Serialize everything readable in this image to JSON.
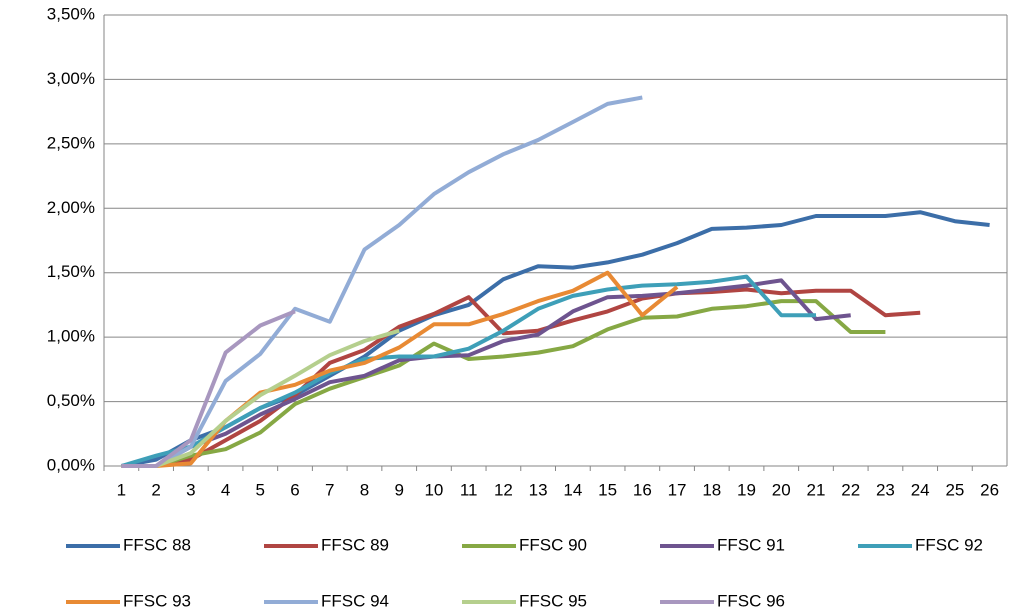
{
  "chart_data": {
    "type": "line",
    "categories": [
      1,
      2,
      3,
      4,
      5,
      6,
      7,
      8,
      9,
      10,
      11,
      12,
      13,
      14,
      15,
      16,
      17,
      18,
      19,
      20,
      21,
      22,
      23,
      24,
      25,
      26
    ],
    "ylim": [
      0,
      3.5
    ],
    "yticks": [
      {
        "value": 0,
        "label": "0,00%"
      },
      {
        "value": 0.5,
        "label": "0,50%"
      },
      {
        "value": 1,
        "label": "1,00%"
      },
      {
        "value": 1.5,
        "label": "1,50%"
      },
      {
        "value": 2,
        "label": "2,00%"
      },
      {
        "value": 2.5,
        "label": "2,50%"
      },
      {
        "value": 3,
        "label": "3,00%"
      },
      {
        "value": 3.5,
        "label": "3,50%"
      }
    ],
    "grid": true,
    "legend": "bottom",
    "series": [
      {
        "name": "FFSC 88",
        "color": "#3c6ea8",
        "values": [
          0,
          0.05,
          0.2,
          0.3,
          0.45,
          0.55,
          0.7,
          0.85,
          1.05,
          1.17,
          1.25,
          1.45,
          1.55,
          1.54,
          1.58,
          1.64,
          1.73,
          1.84,
          1.85,
          1.87,
          1.94,
          1.94,
          1.94,
          1.97,
          1.9,
          1.87
        ]
      },
      {
        "name": "FFSC 89",
        "color": "#b04542",
        "values": [
          0,
          0,
          0.05,
          0.2,
          0.35,
          0.55,
          0.8,
          0.9,
          1.08,
          1.18,
          1.31,
          1.03,
          1.05,
          1.13,
          1.2,
          1.3,
          1.34,
          1.35,
          1.37,
          1.34,
          1.36,
          1.36,
          1.17,
          1.19,
          null,
          null
        ]
      },
      {
        "name": "FFSC 90",
        "color": "#86a844",
        "values": [
          0,
          0,
          0.08,
          0.13,
          0.26,
          0.48,
          0.6,
          0.69,
          0.78,
          0.95,
          0.83,
          0.85,
          0.88,
          0.93,
          1.06,
          1.15,
          1.16,
          1.22,
          1.24,
          1.28,
          1.28,
          1.04,
          1.04,
          null,
          null,
          null
        ]
      },
      {
        "name": "FFSC 91",
        "color": "#6e548f",
        "values": [
          0,
          0,
          0.15,
          0.25,
          0.4,
          0.52,
          0.65,
          0.7,
          0.82,
          0.85,
          0.86,
          0.97,
          1.02,
          1.2,
          1.31,
          1.32,
          1.34,
          1.37,
          1.4,
          1.44,
          1.14,
          1.17,
          null,
          null,
          null,
          null
        ]
      },
      {
        "name": "FFSC 92",
        "color": "#3e9fb8",
        "values": [
          0,
          0.08,
          0.15,
          0.3,
          0.45,
          0.57,
          0.72,
          0.83,
          0.85,
          0.85,
          0.91,
          1.05,
          1.22,
          1.32,
          1.37,
          1.4,
          1.41,
          1.43,
          1.47,
          1.17,
          1.17,
          null,
          null,
          null,
          null,
          null
        ]
      },
      {
        "name": "FFSC 93",
        "color": "#e88a34",
        "values": [
          0,
          0,
          0.02,
          0.35,
          0.57,
          0.63,
          0.74,
          0.8,
          0.92,
          1.1,
          1.1,
          1.18,
          1.28,
          1.36,
          1.5,
          1.17,
          1.39,
          null,
          null,
          null,
          null,
          null,
          null,
          null,
          null,
          null
        ]
      },
      {
        "name": "FFSC 94",
        "color": "#92acd6",
        "values": [
          0,
          0,
          0.15,
          0.66,
          0.87,
          1.22,
          1.12,
          1.68,
          1.87,
          2.11,
          2.28,
          2.42,
          2.53,
          2.67,
          2.81,
          2.86,
          null,
          null,
          null,
          null,
          null,
          null,
          null,
          null,
          null,
          null
        ]
      },
      {
        "name": "FFSC 95",
        "color": "#b5cf8d",
        "values": [
          0,
          0,
          0.1,
          0.35,
          0.55,
          0.7,
          0.86,
          0.97,
          1.05,
          null,
          null,
          null,
          null,
          null,
          null,
          null,
          null,
          null,
          null,
          null,
          null,
          null,
          null,
          null,
          null,
          null
        ]
      },
      {
        "name": "FFSC 96",
        "color": "#a897bf",
        "values": [
          0,
          0,
          0.2,
          0.88,
          1.09,
          1.2,
          null,
          null,
          null,
          null,
          null,
          null,
          null,
          null,
          null,
          null,
          null,
          null,
          null,
          null,
          null,
          null,
          null,
          null,
          null,
          null
        ]
      }
    ]
  }
}
